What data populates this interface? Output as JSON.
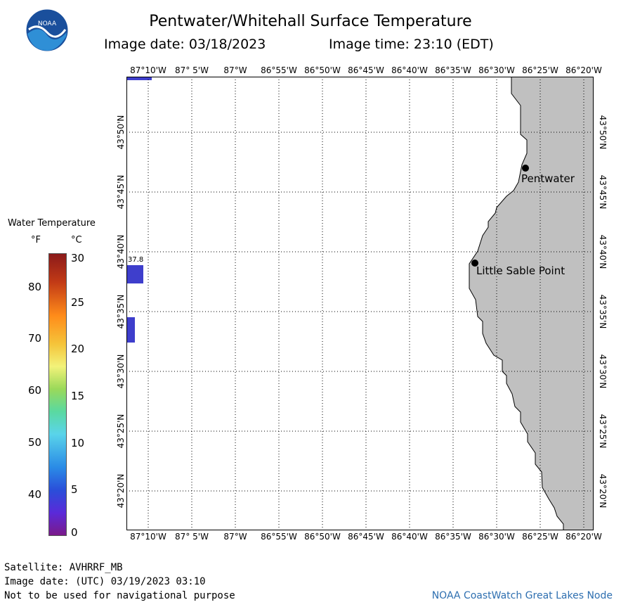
{
  "header": {
    "title": "Pentwater/Whitehall Surface Temperature",
    "image_date": "Image date: 03/18/2023",
    "image_time": "Image time: 23:10 (EDT)"
  },
  "colors": {
    "land": "#c0c0c0",
    "water": "#ffffff",
    "data_cell": "#3e3ecc",
    "grid": "#000000",
    "credit_text": "#2e6fb0"
  },
  "logo": {
    "icon": "noaa-logo-icon",
    "text": "NOAA"
  },
  "map": {
    "lon_labels": [
      "87°10'W",
      "87° 5'W",
      "87°W",
      "86°55'W",
      "86°50'W",
      "86°45'W",
      "86°40'W",
      "86°35'W",
      "86°30'W",
      "86°25'W",
      "86°20'W"
    ],
    "lat_labels": [
      "43°50'N",
      "43°45'N",
      "43°40'N",
      "43°35'N",
      "43°30'N",
      "43°25'N",
      "43°20'N"
    ],
    "places": [
      {
        "name": "Pentwater",
        "icon": "city-dot-icon"
      },
      {
        "name": "Little Sable Point",
        "icon": "city-dot-icon"
      }
    ],
    "temperature_label": "37.8"
  },
  "legend": {
    "title": "Water Temperature",
    "unit_f": "°F",
    "unit_c": "°C",
    "f_ticks": [
      "80",
      "70",
      "60",
      "50",
      "40"
    ],
    "c_ticks": [
      "30",
      "25",
      "20",
      "15",
      "10",
      "5",
      "0"
    ],
    "colorbar": [
      "#8b1a1a",
      "#d9541a",
      "#ff8c1a",
      "#f5c43a",
      "#f2f27a",
      "#9ad95a",
      "#5ad9a0",
      "#5ad4ea",
      "#2a8ae6",
      "#2a4ed9",
      "#5a2ad9",
      "#7a1a8a"
    ]
  },
  "footer": {
    "satellite": "Satellite: AVHRRF_MB",
    "utc_date": "Image date: (UTC) 03/19/2023  03:10",
    "disclaimer": "Not to be used for navigational purpose",
    "credit": "NOAA CoastWatch Great Lakes Node"
  }
}
